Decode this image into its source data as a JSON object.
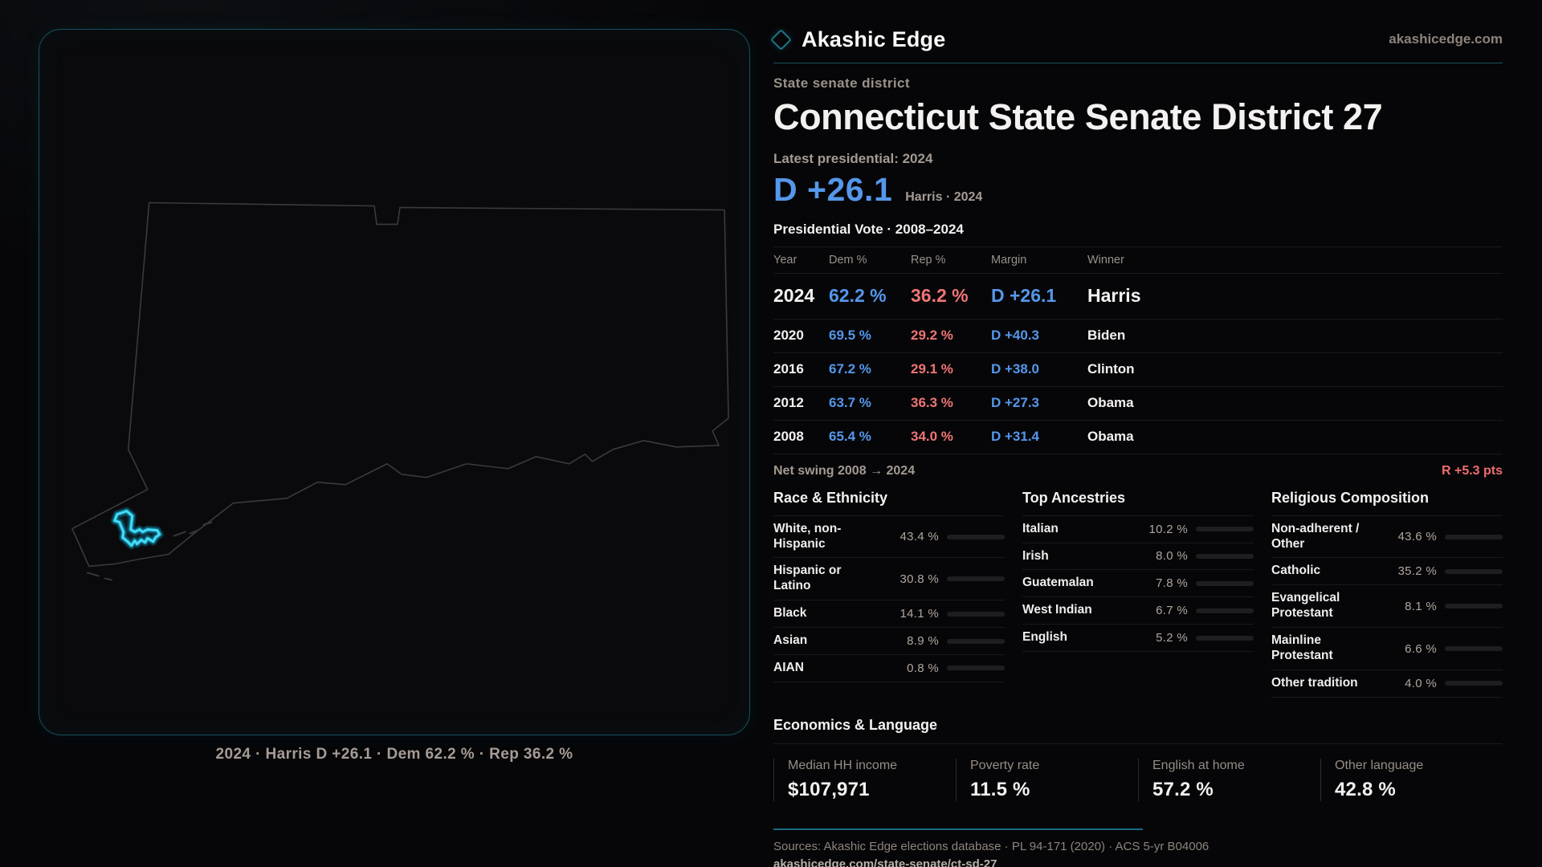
{
  "brand": {
    "name": "Akashic Edge",
    "site": "akashicedge.com"
  },
  "page": {
    "eyebrow": "State senate district",
    "title": "Connecticut State Senate District 27",
    "latest_label": "Latest presidential: 2024",
    "margin_big": "D +26.1",
    "margin_caption": "Harris · 2024"
  },
  "map": {
    "caption": "2024 · Harris D +26.1 · Dem 62.2 % · Rep 36.2 %"
  },
  "vote_table": {
    "title": "Presidential Vote · 2008–2024",
    "headers": {
      "year": "Year",
      "dem": "Dem %",
      "rep": "Rep %",
      "margin": "Margin",
      "winner": "Winner"
    },
    "rows": [
      {
        "year": "2024",
        "dem": "62.2 %",
        "rep": "36.2 %",
        "margin": "D +26.1",
        "winner": "Harris"
      },
      {
        "year": "2020",
        "dem": "69.5 %",
        "rep": "29.2 %",
        "margin": "D +40.3",
        "winner": "Biden"
      },
      {
        "year": "2016",
        "dem": "67.2 %",
        "rep": "29.1 %",
        "margin": "D +38.0",
        "winner": "Clinton"
      },
      {
        "year": "2012",
        "dem": "63.7 %",
        "rep": "36.3 %",
        "margin": "D +27.3",
        "winner": "Obama"
      },
      {
        "year": "2008",
        "dem": "65.4 %",
        "rep": "34.0 %",
        "margin": "D +31.4",
        "winner": "Obama"
      }
    ]
  },
  "swing": {
    "label": "Net swing 2008 → 2024",
    "value": "R +5.3 pts"
  },
  "race": {
    "title": "Race & Ethnicity",
    "rows": [
      {
        "label": "White, non-Hispanic",
        "pct": "43.4 %",
        "value": 43.4,
        "color": "#8c9cb5"
      },
      {
        "label": "Hispanic or Latino",
        "pct": "30.8 %",
        "value": 30.8,
        "color": "#e3a43c"
      },
      {
        "label": "Black",
        "pct": "14.1 %",
        "value": 14.1,
        "color": "#9183ee"
      },
      {
        "label": "Asian",
        "pct": "8.9 %",
        "value": 8.9,
        "color": "#32c98c"
      },
      {
        "label": "AIAN",
        "pct": "0.8 %",
        "value": 0.8,
        "color": "#a3571f"
      }
    ]
  },
  "ancestries": {
    "title": "Top Ancestries",
    "rows": [
      {
        "label": "Italian",
        "pct": "10.2 %",
        "value": 10.2,
        "color": "#8fa6c4"
      },
      {
        "label": "Irish",
        "pct": "8.0 %",
        "value": 8.0,
        "color": "#8fa6c4"
      },
      {
        "label": "Guatemalan",
        "pct": "7.8 %",
        "value": 7.8,
        "color": "#e3a43c"
      },
      {
        "label": "West Indian",
        "pct": "6.7 %",
        "value": 6.7,
        "color": "#9183ee"
      },
      {
        "label": "English",
        "pct": "5.2 %",
        "value": 5.2,
        "color": "#8d99a6"
      }
    ]
  },
  "religion": {
    "title": "Religious Composition",
    "rows": [
      {
        "label": "Non-adherent / Other",
        "pct": "43.6 %",
        "value": 43.6,
        "color": "#8c9cb5"
      },
      {
        "label": "Catholic",
        "pct": "35.2 %",
        "value": 35.2,
        "color": "#ddb32b"
      },
      {
        "label": "Evangelical Protestant",
        "pct": "8.1 %",
        "value": 8.1,
        "color": "#e36a6a"
      },
      {
        "label": "Mainline Protestant",
        "pct": "6.6 %",
        "value": 6.6,
        "color": "#4e94e8"
      },
      {
        "label": "Other tradition",
        "pct": "4.0 %",
        "value": 4.0,
        "color": "#8a8a8a"
      }
    ]
  },
  "economics": {
    "title": "Economics & Language",
    "stats": [
      {
        "label": "Median HH income",
        "value": "$107,971"
      },
      {
        "label": "Poverty rate",
        "value": "11.5 %"
      },
      {
        "label": "English at home",
        "value": "57.2 %"
      },
      {
        "label": "Other language",
        "value": "42.8 %"
      }
    ]
  },
  "footer": {
    "sources": "Sources: Akashic Edge elections database · PL 94-171 (2020) · ACS 5-yr B04006",
    "url": "akashicedge.com/state-senate/ct-sd-27"
  },
  "colors": {
    "dem": "#5597ea",
    "rep": "#ef7575",
    "accent_teal": "#1e7e95",
    "district": "#45dcf8"
  }
}
